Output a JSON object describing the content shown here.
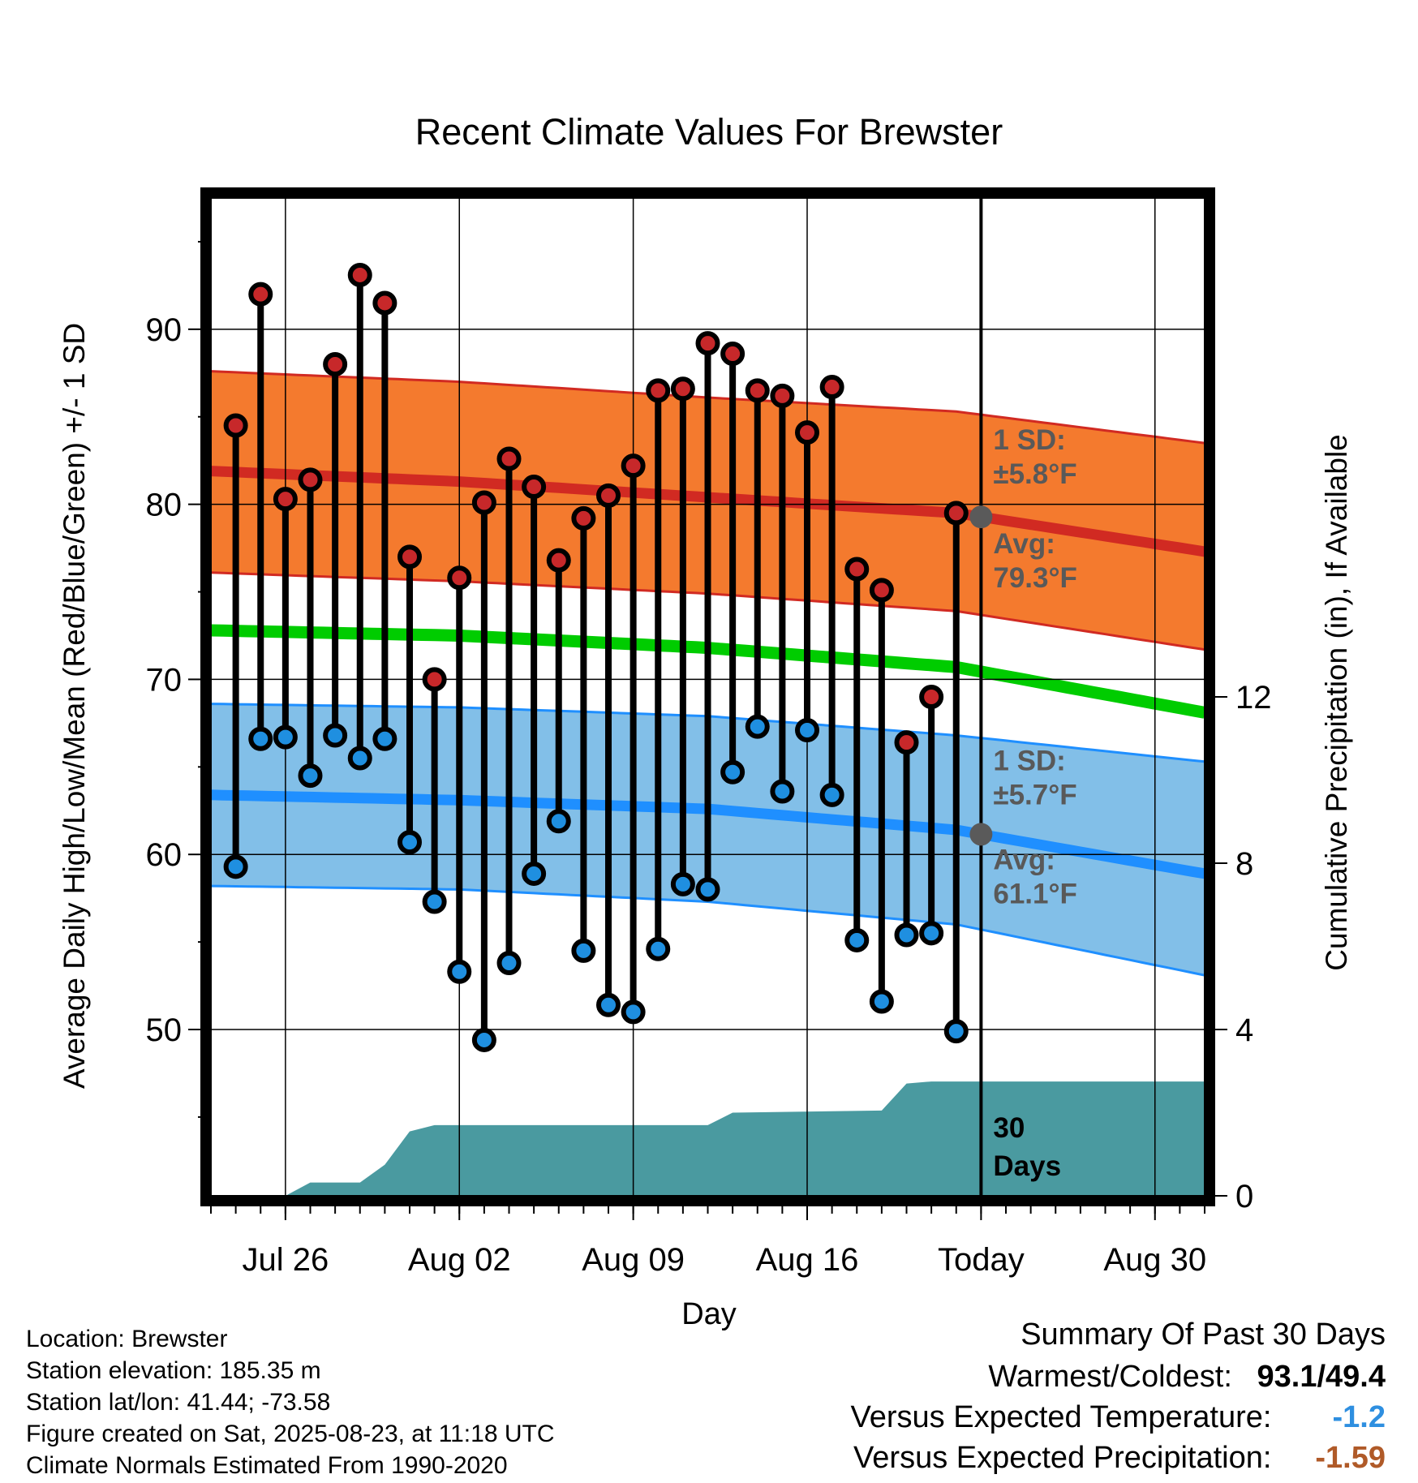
{
  "chart_data": {
    "type": "line",
    "title": "Recent Climate Values For Brewster",
    "xlabel": "Day",
    "ylabel": "Average Daily High/Low/Mean (Red/Blue/Green) +/- 1 SD",
    "y2label": "Cumulative Precipitation (in), If Available",
    "x_range": [
      "2025-07-23",
      "2025-09-01"
    ],
    "ylim": [
      40.5,
      97.5
    ],
    "y2lim": [
      0,
      24
    ],
    "y_ticks": [
      50,
      60,
      70,
      80,
      90
    ],
    "y2_ticks": [
      0,
      4,
      8,
      12
    ],
    "x_ticks": [
      "Jul 26",
      "Aug 02",
      "Aug 09",
      "Aug 16",
      "Today",
      "Aug 30"
    ],
    "x_tick_dates": [
      "2025-07-26",
      "2025-08-02",
      "2025-08-09",
      "2025-08-16",
      "2025-08-23",
      "2025-08-30"
    ],
    "today": "2025-08-23",
    "grid": true,
    "observed": {
      "dates": [
        "2025-07-24",
        "2025-07-25",
        "2025-07-26",
        "2025-07-27",
        "2025-07-28",
        "2025-07-29",
        "2025-07-30",
        "2025-07-31",
        "2025-08-01",
        "2025-08-02",
        "2025-08-03",
        "2025-08-04",
        "2025-08-05",
        "2025-08-06",
        "2025-08-07",
        "2025-08-08",
        "2025-08-09",
        "2025-08-10",
        "2025-08-11",
        "2025-08-12",
        "2025-08-13",
        "2025-08-14",
        "2025-08-15",
        "2025-08-16",
        "2025-08-17",
        "2025-08-18",
        "2025-08-19",
        "2025-08-20",
        "2025-08-21",
        "2025-08-22"
      ],
      "high": [
        84.5,
        92.0,
        80.3,
        81.4,
        88.0,
        93.1,
        91.5,
        77.0,
        70.0,
        75.8,
        80.1,
        82.6,
        81.0,
        76.8,
        79.2,
        80.5,
        82.2,
        86.5,
        86.6,
        89.2,
        88.6,
        86.5,
        86.2,
        84.1,
        86.7,
        76.3,
        75.1,
        66.4,
        69.0,
        79.5
      ],
      "low": [
        59.3,
        66.6,
        66.7,
        64.5,
        66.8,
        65.5,
        66.6,
        60.7,
        57.3,
        53.3,
        49.4,
        53.8,
        58.9,
        61.9,
        54.5,
        51.4,
        51.0,
        54.6,
        58.3,
        58.0,
        64.7,
        67.3,
        63.6,
        67.1,
        63.4,
        55.1,
        51.6,
        55.4,
        55.5,
        49.9
      ]
    },
    "normals": {
      "dates": [
        "2025-07-23",
        "2025-08-02",
        "2025-08-12",
        "2025-08-22",
        "2025-09-01"
      ],
      "high_mean": [
        81.9,
        81.3,
        80.4,
        79.5,
        77.3
      ],
      "high_upper": [
        87.6,
        87.0,
        86.1,
        85.3,
        83.5
      ],
      "high_lower": [
        76.1,
        75.6,
        74.9,
        73.9,
        71.7
      ],
      "mean": [
        72.8,
        72.5,
        71.8,
        70.7,
        68.1
      ],
      "low_mean": [
        63.4,
        63.1,
        62.6,
        61.4,
        58.9
      ],
      "low_upper": [
        68.6,
        68.4,
        67.9,
        66.8,
        65.3
      ],
      "low_lower": [
        58.2,
        58.0,
        57.3,
        56.0,
        53.1
      ]
    },
    "precip_cumulative": {
      "dates": [
        "2025-07-26",
        "2025-07-27",
        "2025-07-28",
        "2025-07-29",
        "2025-07-30",
        "2025-07-31",
        "2025-08-01",
        "2025-08-02",
        "2025-08-12",
        "2025-08-13",
        "2025-08-19",
        "2025-08-20",
        "2025-08-21",
        "2025-09-01"
      ],
      "values": [
        0.0,
        0.32,
        0.32,
        0.32,
        0.75,
        1.55,
        1.7,
        1.7,
        1.7,
        2.0,
        2.05,
        2.7,
        2.75,
        2.75
      ]
    },
    "annotations": {
      "high_sd_label": "1 SD:",
      "high_sd_value": "±5.8°F",
      "high_avg_label": "Avg:",
      "high_avg_value": "79.3°F",
      "low_sd_label": "1 SD:",
      "low_sd_value": "±5.7°F",
      "low_avg_label": "Avg:",
      "low_avg_value": "61.1°F",
      "days_number": "30",
      "days_label": "Days"
    },
    "colors": {
      "high_band": "#f47a2e",
      "high_line": "#d12a22",
      "low_band": "#82bfe8",
      "low_line": "#1f8fff",
      "mean_line": "#00cc00",
      "precip": "#4a9aa0",
      "high_marker": "#c7282a",
      "low_marker": "#1f8fe0",
      "annotation_text": "#595959"
    }
  },
  "info": {
    "location": "Location: Brewster",
    "elevation": "Station elevation: 185.35 m",
    "latlon": "Station lat/lon: 41.44; -73.58",
    "created": "Figure created on Sat, 2025-08-23, at 11:18 UTC",
    "normals": "Climate Normals Estimated From 1990-2020"
  },
  "summary": {
    "title": "Summary Of Past 30 Days",
    "warmest_label": "Warmest/Coldest:",
    "warmest_value": "93.1",
    "coldest_value": "49.4",
    "temp_label": "Versus Expected Temperature:",
    "temp_value": "-1.2",
    "temp_color": "#2e8fe0",
    "precip_label": "Versus Expected Precipitation:",
    "precip_value": "-1.59",
    "precip_color": "#b05a28"
  }
}
